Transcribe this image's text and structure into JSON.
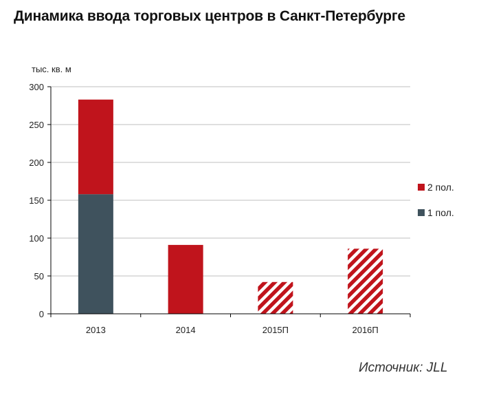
{
  "title": "Динамика ввода торговых центров в Санкт-Петербурге",
  "source": "Источник: JLL",
  "chart_data": {
    "type": "bar",
    "stacked": true,
    "ylabel": "тыс. кв. м",
    "ylim": [
      0,
      300
    ],
    "yticks": [
      0,
      50,
      100,
      150,
      200,
      250,
      300
    ],
    "categories": [
      "2013",
      "2014",
      "2015П",
      "2016П"
    ],
    "grid": true,
    "legend_position": "right",
    "series": [
      {
        "name": "1 пол.",
        "color": "#3f525d",
        "values": [
          158,
          0,
          0,
          0
        ]
      },
      {
        "name": "2 пол.",
        "color": "#c0141c",
        "values": [
          125,
          91,
          42,
          86
        ]
      }
    ],
    "forecast": [
      false,
      false,
      true,
      true
    ],
    "colors": {
      "grid": "#bfbfbf",
      "axis": "#000000",
      "forecast_hatch": "#c0141c"
    }
  }
}
